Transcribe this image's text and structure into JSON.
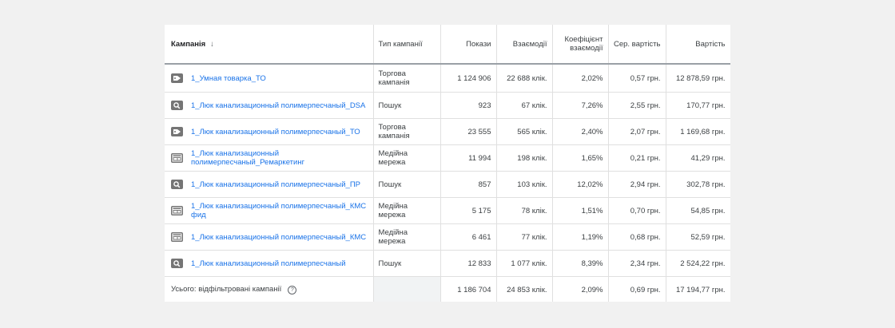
{
  "columns": {
    "campaign": "Кампанія",
    "type": "Тип кампанії",
    "impressions": "Покази",
    "interactions": "Взаємодії",
    "rate": "Коефіцієнт взаємодії",
    "avg_cost": "Сер. вартість",
    "cost": "Вартість"
  },
  "rows": [
    {
      "icon": "tag-icon",
      "name": "1_Умная товарка_ТО",
      "type": "Торгова кампанія",
      "impressions": "1 124 906",
      "interactions": "22 688 клік.",
      "rate": "2,02%",
      "avg_cost": "0,57 грн.",
      "cost": "12 878,59 грн."
    },
    {
      "icon": "search-icon",
      "name": "1_Люк канализационный полимерпесчаный_DSA",
      "type": "Пошук",
      "impressions": "923",
      "interactions": "67 клік.",
      "rate": "7,26%",
      "avg_cost": "2,55 грн.",
      "cost": "170,77 грн."
    },
    {
      "icon": "tag-icon",
      "name": "1_Люк канализационный полимерпесчаный_ТО",
      "type": "Торгова кампанія",
      "impressions": "23 555",
      "interactions": "565 клік.",
      "rate": "2,40%",
      "avg_cost": "2,07 грн.",
      "cost": "1 169,68 грн."
    },
    {
      "icon": "display-icon",
      "name": "1_Люк канализационный полимерпесчаный_Ремаркетинг",
      "type": "Медійна мережа",
      "impressions": "11 994",
      "interactions": "198 клік.",
      "rate": "1,65%",
      "avg_cost": "0,21 грн.",
      "cost": "41,29 грн."
    },
    {
      "icon": "search-icon",
      "name": "1_Люк канализационный полимерпесчаный_ПР",
      "type": "Пошук",
      "impressions": "857",
      "interactions": "103 клік.",
      "rate": "12,02%",
      "avg_cost": "2,94 грн.",
      "cost": "302,78 грн."
    },
    {
      "icon": "display-icon",
      "name": "1_Люк канализационный полимерпесчаный_КМС фид",
      "type": "Медійна мережа",
      "impressions": "5 175",
      "interactions": "78 клік.",
      "rate": "1,51%",
      "avg_cost": "0,70 грн.",
      "cost": "54,85 грн."
    },
    {
      "icon": "display-icon",
      "name": "1_Люк канализационный полимерпесчаный_КМС",
      "type": "Медійна мережа",
      "impressions": "6 461",
      "interactions": "77 клік.",
      "rate": "1,19%",
      "avg_cost": "0,68 грн.",
      "cost": "52,59 грн."
    },
    {
      "icon": "search-icon",
      "name": "1_Люк канализационный полимерпесчаный",
      "type": "Пошук",
      "impressions": "12 833",
      "interactions": "1 077 клік.",
      "rate": "8,39%",
      "avg_cost": "2,34 грн.",
      "cost": "2 524,22 грн."
    }
  ],
  "total": {
    "label": "Усього: відфільтровані кампанії",
    "impressions": "1 186 704",
    "interactions": "24 853 клік.",
    "rate": "2,09%",
    "avg_cost": "0,69 грн.",
    "cost": "17 194,77 грн."
  }
}
